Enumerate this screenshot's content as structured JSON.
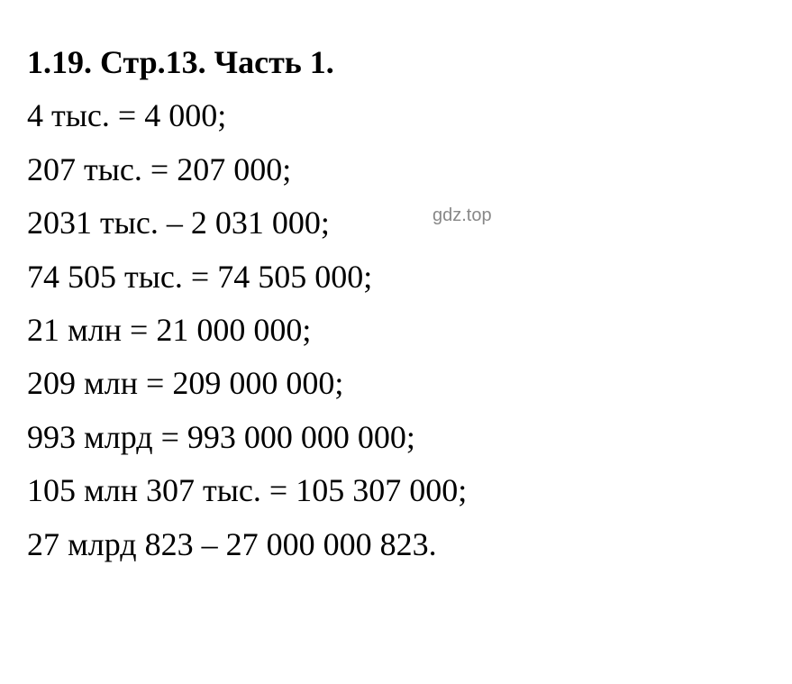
{
  "heading": "1.19. Стр.13. Часть 1.",
  "lines": [
    "4 тыс. = 4 000;",
    "207 тыс. = 207 000;",
    "2031 тыс. – 2 031 000;",
    "74 505 тыс. = 74 505 000;",
    "21 млн = 21 000 000;",
    "209 млн = 209 000 000;",
    "993 млрд = 993 000 000 000;",
    "105 млн 307 тыс. = 105 307 000;",
    "27 млрд 823 – 27 000 000 823."
  ],
  "watermark": "gdz.top",
  "styling": {
    "background_color": "#ffffff",
    "text_color": "#000000",
    "font_family": "Times New Roman",
    "font_size": 36,
    "line_height": 1.65,
    "heading_font_weight": "bold",
    "watermark_color": "#888888",
    "watermark_font_size": 20
  }
}
